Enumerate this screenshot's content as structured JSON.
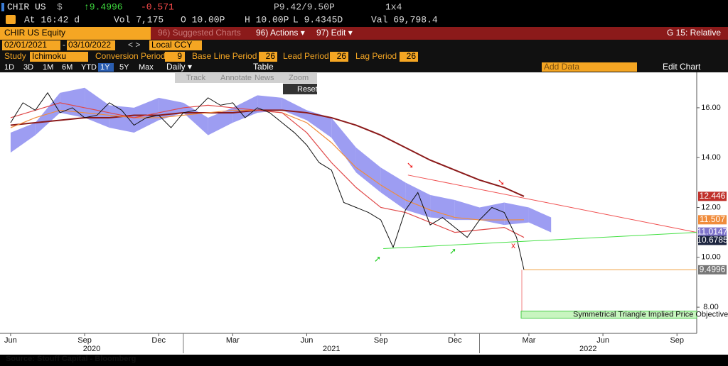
{
  "header": {
    "ticker": "CHIR US",
    "currency": "$",
    "last": "↑9.4996",
    "change": "-0.571",
    "bid_ask": "P9.42/9.50P",
    "size": "1x4",
    "time": "At 16:42 d",
    "volume": "Vol 7,175",
    "open": "O 10.00P",
    "high": "H 10.00P",
    "low": "L 9.4345D",
    "value": "Val 69,798.4"
  },
  "menu": {
    "security": "CHIR US Equity",
    "suggested": "96) Suggested Charts",
    "actions": "96) Actions ▾",
    "edit": "97) Edit ▾",
    "template": "G 15: Relative"
  },
  "range": {
    "start": "02/01/2021",
    "dash": "-",
    "end": "03/10/2022",
    "nav": "< >",
    "currency": "Local CCY"
  },
  "study": {
    "label": "Study",
    "name": "Ichimoku",
    "conversion_label": "Conversion Period",
    "conversion": "9",
    "base_label": "Base Line Period",
    "base": "26",
    "lead_label": "Lead Period",
    "lead": "26",
    "lag_label": "Lag Period",
    "lag": "26"
  },
  "toolbar": {
    "periods": [
      "1D",
      "3D",
      "1M",
      "6M",
      "YTD",
      "1Y",
      "5Y",
      "Max"
    ],
    "selected": 5,
    "frequency": "Daily ▾",
    "table": "Table",
    "add_data": "Add Data",
    "edit_chart": "Edit Chart"
  },
  "chart_tools": [
    "Track",
    "Annotate",
    "News",
    "Zoom"
  ],
  "reset": "Reset",
  "source": "Source: Stouff Capital - Bloomberg",
  "chart_data": {
    "type": "line",
    "xlim": [
      -0.43,
      27.8
    ],
    "ylim": [
      6.95,
      17.42
    ],
    "xticks": [
      {
        "value": 0,
        "label": "Jun"
      },
      {
        "value": 3,
        "label": "Sep"
      },
      {
        "value": 6,
        "label": "Dec"
      },
      {
        "value": 9,
        "label": "Mar"
      },
      {
        "value": 12,
        "label": "Jun"
      },
      {
        "value": 15,
        "label": "Sep"
      },
      {
        "value": 18,
        "label": "Dec"
      },
      {
        "value": 21,
        "label": "Mar"
      },
      {
        "value": 24,
        "label": "Jun"
      },
      {
        "value": 27,
        "label": "Sep"
      }
    ],
    "years": [
      "2020",
      "2021",
      "2022"
    ],
    "yticks": [
      {
        "value": 16,
        "label": "16.00"
      },
      {
        "value": 14,
        "label": "14.00"
      },
      {
        "value": 12,
        "label": "12.00"
      },
      {
        "value": 10,
        "label": "10.00"
      },
      {
        "value": 8,
        "label": "8.00"
      }
    ],
    "price": {
      "color": "#111111",
      "x": [
        0,
        0.5,
        1,
        1.5,
        2,
        2.5,
        3,
        3.5,
        4,
        4.5,
        5,
        5.5,
        6,
        6.5,
        7,
        7.5,
        8,
        8.5,
        9,
        9.5,
        10,
        10.5,
        11,
        11.5,
        12,
        12.5,
        13,
        13.5,
        14,
        14.5,
        15,
        15.5,
        16,
        16.5,
        17,
        17.5,
        18,
        18.5,
        19,
        19.5,
        20,
        20.5,
        20.8
      ],
      "values": [
        15.4,
        16.2,
        15.9,
        16.6,
        15.8,
        16.0,
        15.6,
        15.7,
        16.2,
        15.9,
        15.3,
        15.6,
        15.7,
        15.2,
        15.8,
        15.9,
        16.4,
        16.1,
        16.2,
        15.6,
        16.0,
        15.8,
        15.4,
        15.0,
        14.5,
        13.8,
        13.5,
        12.2,
        12.0,
        11.8,
        11.5,
        10.4,
        11.9,
        12.6,
        11.3,
        11.6,
        11.2,
        10.8,
        11.5,
        12.0,
        11.8,
        10.8,
        9.4996
      ]
    },
    "cloud": {
      "color": "#8c8cf0",
      "x": [
        0,
        1,
        2,
        3,
        4,
        5,
        6,
        7,
        8,
        9,
        10,
        11,
        12,
        13,
        14,
        15,
        16,
        17,
        18,
        19,
        20,
        21,
        21.9
      ],
      "upper": [
        15.0,
        15.4,
        16.6,
        16.8,
        16.1,
        16.0,
        16.4,
        16.2,
        15.6,
        16.0,
        16.5,
        16.4,
        15.9,
        15.6,
        14.4,
        13.6,
        13.0,
        12.5,
        12.3,
        12.0,
        12.2,
        12.0,
        11.6
      ],
      "lower": [
        14.2,
        14.9,
        15.8,
        15.6,
        15.2,
        15.0,
        15.5,
        15.8,
        14.9,
        15.4,
        15.8,
        15.9,
        15.5,
        14.8,
        13.4,
        12.6,
        11.9,
        11.6,
        11.5,
        11.5,
        11.3,
        11.4,
        11.0
      ]
    },
    "ma_x": [
      0,
      1,
      2,
      3,
      4,
      5,
      6,
      7,
      8,
      9,
      10,
      11,
      12,
      13,
      14,
      15,
      16,
      17,
      18,
      19,
      20,
      20.8
    ],
    "series": [
      {
        "color": "#8b1a1a",
        "values": [
          15.3,
          15.4,
          15.5,
          15.6,
          15.6,
          15.7,
          15.7,
          15.8,
          15.8,
          15.8,
          15.9,
          15.9,
          15.8,
          15.6,
          15.3,
          14.9,
          14.4,
          13.9,
          13.5,
          13.1,
          12.8,
          12.446
        ]
      },
      {
        "color": "#f08c3c",
        "values": [
          15.2,
          15.6,
          15.9,
          15.8,
          15.7,
          15.6,
          15.6,
          15.7,
          15.8,
          15.9,
          15.9,
          15.8,
          15.4,
          14.6,
          13.6,
          12.9,
          12.3,
          11.9,
          11.6,
          11.5,
          11.5,
          11.507
        ]
      },
      {
        "color": "#e04848",
        "values": [
          15.6,
          15.9,
          16.2,
          16.0,
          15.8,
          15.6,
          15.8,
          16.0,
          16.1,
          16.0,
          15.9,
          15.8,
          15.0,
          13.8,
          12.8,
          12.0,
          11.8,
          11.4,
          11.0,
          11.1,
          11.2,
          10.8
        ]
      }
    ],
    "trendlines": [
      {
        "color": "#f05050",
        "x": [
          16.1,
          27.8
        ],
        "values": [
          13.3,
          11.0
        ]
      },
      {
        "color": "#44e044",
        "x": [
          15.1,
          27.8
        ],
        "values": [
          10.35,
          11.0
        ]
      }
    ],
    "price_labels": [
      {
        "value": 12.446,
        "color": "#c0302a"
      },
      {
        "value": 11.507,
        "color": "#f08c3c"
      },
      {
        "value": 11.0147,
        "color": "#7f74cc"
      },
      {
        "value": 10.6785,
        "color": "#1d2540"
      },
      {
        "value": 9.4996,
        "color": "#777777"
      }
    ],
    "target": {
      "value": 7.7,
      "label": "Symmetrical Triangle Implied Price Objective"
    }
  }
}
